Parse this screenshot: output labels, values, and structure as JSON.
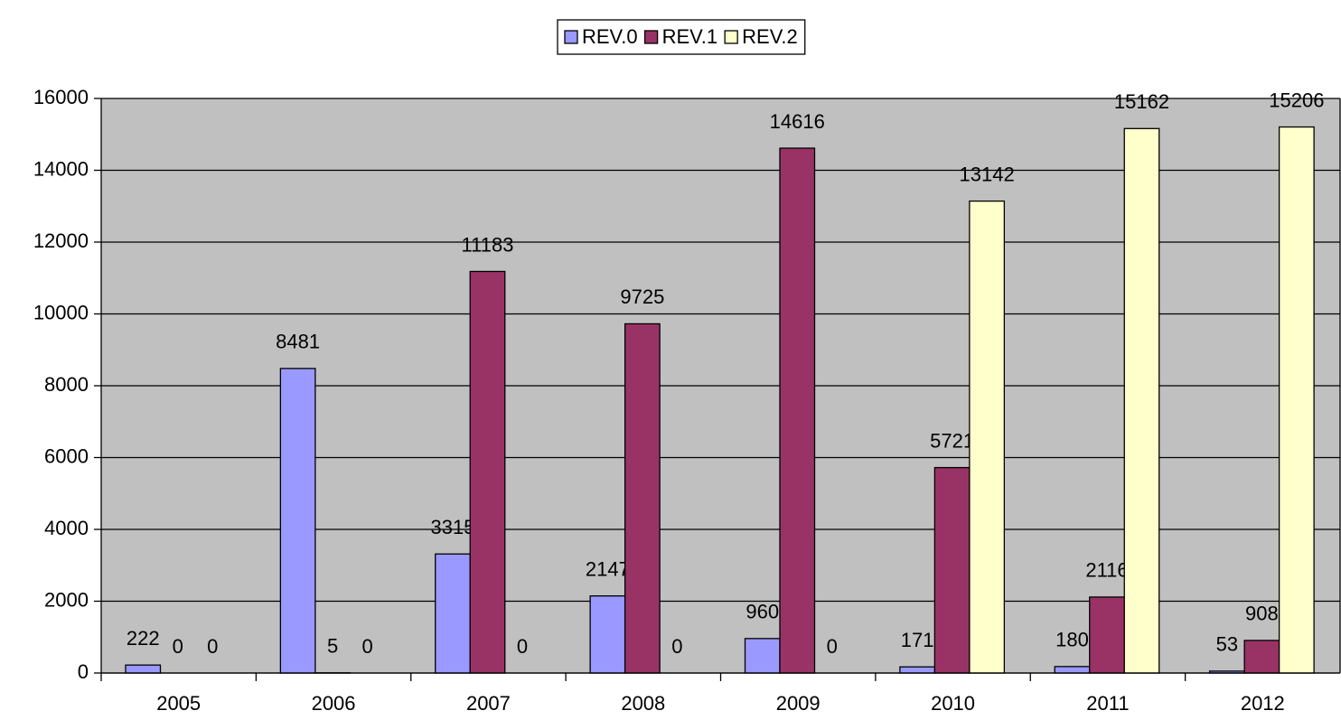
{
  "chart_data": {
    "type": "bar",
    "categories": [
      "2005",
      "2006",
      "2007",
      "2008",
      "2009",
      "2010",
      "2011",
      "2012"
    ],
    "series": [
      {
        "name": "REV.0",
        "color": "#9999ff",
        "values": [
          222,
          8481,
          3315,
          2147,
          960,
          171,
          180,
          53
        ]
      },
      {
        "name": "REV.1",
        "color": "#993366",
        "values": [
          0,
          5,
          11183,
          9725,
          14616,
          5721,
          2116,
          908
        ]
      },
      {
        "name": "REV.2",
        "color": "#ffffcc",
        "values": [
          0,
          0,
          0,
          0,
          0,
          13142,
          15162,
          15206
        ]
      }
    ],
    "ylim": [
      0,
      16000
    ],
    "yticks": [
      0,
      2000,
      4000,
      6000,
      8000,
      10000,
      12000,
      14000,
      16000
    ],
    "grid": true,
    "legend": "top"
  }
}
